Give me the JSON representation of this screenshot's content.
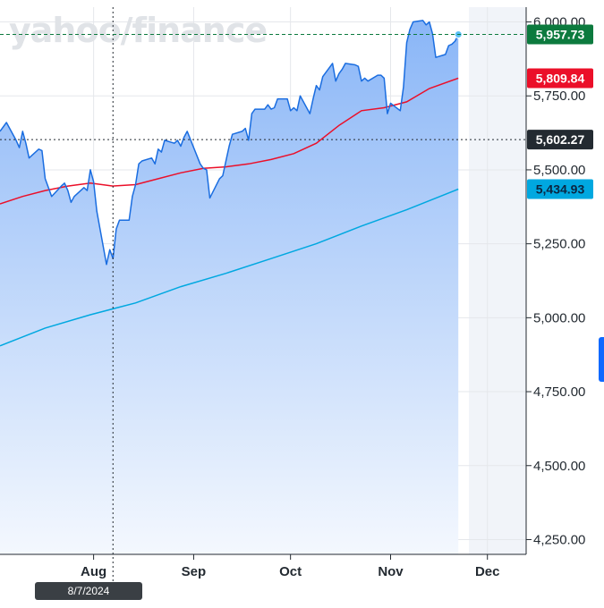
{
  "watermark": "yahoo/finance",
  "cursor": {
    "date": "8/7/2024"
  },
  "price_tags": {
    "last": {
      "label": "5,957.73",
      "value": 5957.73,
      "color": "#0c7a3e"
    },
    "ma50": {
      "label": "5,809.84",
      "value": 5809.84,
      "color": "#eb0f29"
    },
    "cursor": {
      "label": "5,602.27",
      "value": 5602.27,
      "color": "#232a31"
    },
    "ma200": {
      "label": "5,434.93",
      "value": 5434.93,
      "color": "#00a8e0"
    }
  },
  "colors": {
    "price_line": "#1a6de0",
    "area_top": "#8ab6f7",
    "area_bottom": "#f4f8fe",
    "grid": "#e5e7eb",
    "future_shade": "#f1f4f9"
  },
  "chart_data": {
    "type": "area",
    "title": "",
    "xlabel": "",
    "ylabel": "",
    "ylim": [
      4200,
      6050
    ],
    "y_ticks": [
      "4,250.00",
      "4,500.00",
      "4,750.00",
      "5,000.00",
      "5,250.00",
      "5,500.00",
      "5,750.00",
      "6,000.00"
    ],
    "y_tick_values": [
      4250,
      4500,
      4750,
      5000,
      5250,
      5500,
      5750,
      6000
    ],
    "x_ticks": [
      "Aug",
      "Sep",
      "Oct",
      "Nov",
      "Dec"
    ],
    "x_tick_dates": [
      "2024-08-01",
      "2024-09-01",
      "2024-10-01",
      "2024-11-01",
      "2024-12-01"
    ],
    "xlim": [
      "2024-07-03",
      "2024-12-13"
    ],
    "grid": true,
    "series": [
      {
        "kind": "price",
        "dates": [
          "2024-07-03",
          "2024-07-05",
          "2024-07-08",
          "2024-07-09",
          "2024-07-10",
          "2024-07-11",
          "2024-07-12",
          "2024-07-15",
          "2024-07-16",
          "2024-07-17",
          "2024-07-18",
          "2024-07-19",
          "2024-07-22",
          "2024-07-23",
          "2024-07-24",
          "2024-07-25",
          "2024-07-26",
          "2024-07-29",
          "2024-07-30",
          "2024-07-31",
          "2024-08-01",
          "2024-08-02",
          "2024-08-05",
          "2024-08-06",
          "2024-08-07",
          "2024-08-08",
          "2024-08-09",
          "2024-08-12",
          "2024-08-13",
          "2024-08-14",
          "2024-08-15",
          "2024-08-16",
          "2024-08-19",
          "2024-08-20",
          "2024-08-21",
          "2024-08-22",
          "2024-08-23",
          "2024-08-26",
          "2024-08-27",
          "2024-08-28",
          "2024-08-29",
          "2024-08-30",
          "2024-09-03",
          "2024-09-04",
          "2024-09-05",
          "2024-09-06",
          "2024-09-09",
          "2024-09-10",
          "2024-09-11",
          "2024-09-12",
          "2024-09-13",
          "2024-09-16",
          "2024-09-17",
          "2024-09-18",
          "2024-09-19",
          "2024-09-20",
          "2024-09-23",
          "2024-09-24",
          "2024-09-25",
          "2024-09-26",
          "2024-09-27",
          "2024-09-30",
          "2024-10-01",
          "2024-10-02",
          "2024-10-03",
          "2024-10-04",
          "2024-10-07",
          "2024-10-08",
          "2024-10-09",
          "2024-10-10",
          "2024-10-11",
          "2024-10-14",
          "2024-10-15",
          "2024-10-16",
          "2024-10-17",
          "2024-10-18",
          "2024-10-21",
          "2024-10-22",
          "2024-10-23",
          "2024-10-24",
          "2024-10-25",
          "2024-10-28",
          "2024-10-29",
          "2024-10-30",
          "2024-10-31",
          "2024-11-01",
          "2024-11-04",
          "2024-11-05",
          "2024-11-06",
          "2024-11-07",
          "2024-11-08",
          "2024-11-11",
          "2024-11-12",
          "2024-11-13",
          "2024-11-14",
          "2024-11-15",
          "2024-11-18",
          "2024-11-19",
          "2024-11-20",
          "2024-11-21",
          "2024-11-22"
        ],
        "values": [
          5630,
          5660,
          5600,
          5575,
          5630,
          5590,
          5540,
          5570,
          5565,
          5470,
          5440,
          5410,
          5445,
          5455,
          5430,
          5390,
          5410,
          5440,
          5430,
          5500,
          5460,
          5360,
          5180,
          5230,
          5200,
          5300,
          5330,
          5330,
          5410,
          5450,
          5520,
          5530,
          5540,
          5520,
          5570,
          5560,
          5600,
          5590,
          5600,
          5580,
          5610,
          5630,
          5520,
          5505,
          5500,
          5405,
          5470,
          5480,
          5530,
          5580,
          5620,
          5630,
          5640,
          5600,
          5690,
          5705,
          5705,
          5720,
          5705,
          5710,
          5740,
          5740,
          5700,
          5710,
          5700,
          5750,
          5690,
          5740,
          5785,
          5770,
          5815,
          5860,
          5800,
          5825,
          5840,
          5860,
          5855,
          5850,
          5800,
          5810,
          5800,
          5820,
          5820,
          5810,
          5690,
          5725,
          5700,
          5780,
          5930,
          5975,
          6000,
          6005,
          5990,
          6000,
          5960,
          5880,
          5890,
          5920,
          5925,
          5935,
          5957.73
        ]
      },
      {
        "kind": "moving-average",
        "dates": [
          "2024-07-03",
          "2024-07-10",
          "2024-07-17",
          "2024-07-24",
          "2024-07-31",
          "2024-08-07",
          "2024-08-14",
          "2024-08-21",
          "2024-08-28",
          "2024-09-04",
          "2024-09-11",
          "2024-09-18",
          "2024-09-25",
          "2024-10-02",
          "2024-10-09",
          "2024-10-16",
          "2024-10-23",
          "2024-10-30",
          "2024-11-06",
          "2024-11-13",
          "2024-11-22"
        ],
        "values": [
          5385,
          5410,
          5430,
          5445,
          5455,
          5445,
          5450,
          5470,
          5490,
          5505,
          5510,
          5520,
          5535,
          5555,
          5590,
          5650,
          5700,
          5710,
          5730,
          5775,
          5809.84
        ]
      },
      {
        "kind": "moving-average",
        "dates": [
          "2024-07-03",
          "2024-07-17",
          "2024-07-31",
          "2024-08-14",
          "2024-08-28",
          "2024-09-11",
          "2024-09-25",
          "2024-10-09",
          "2024-10-23",
          "2024-11-06",
          "2024-11-22"
        ],
        "values": [
          4905,
          4965,
          5010,
          5050,
          5105,
          5150,
          5200,
          5250,
          5310,
          5365,
          5434.93
        ]
      }
    ]
  }
}
